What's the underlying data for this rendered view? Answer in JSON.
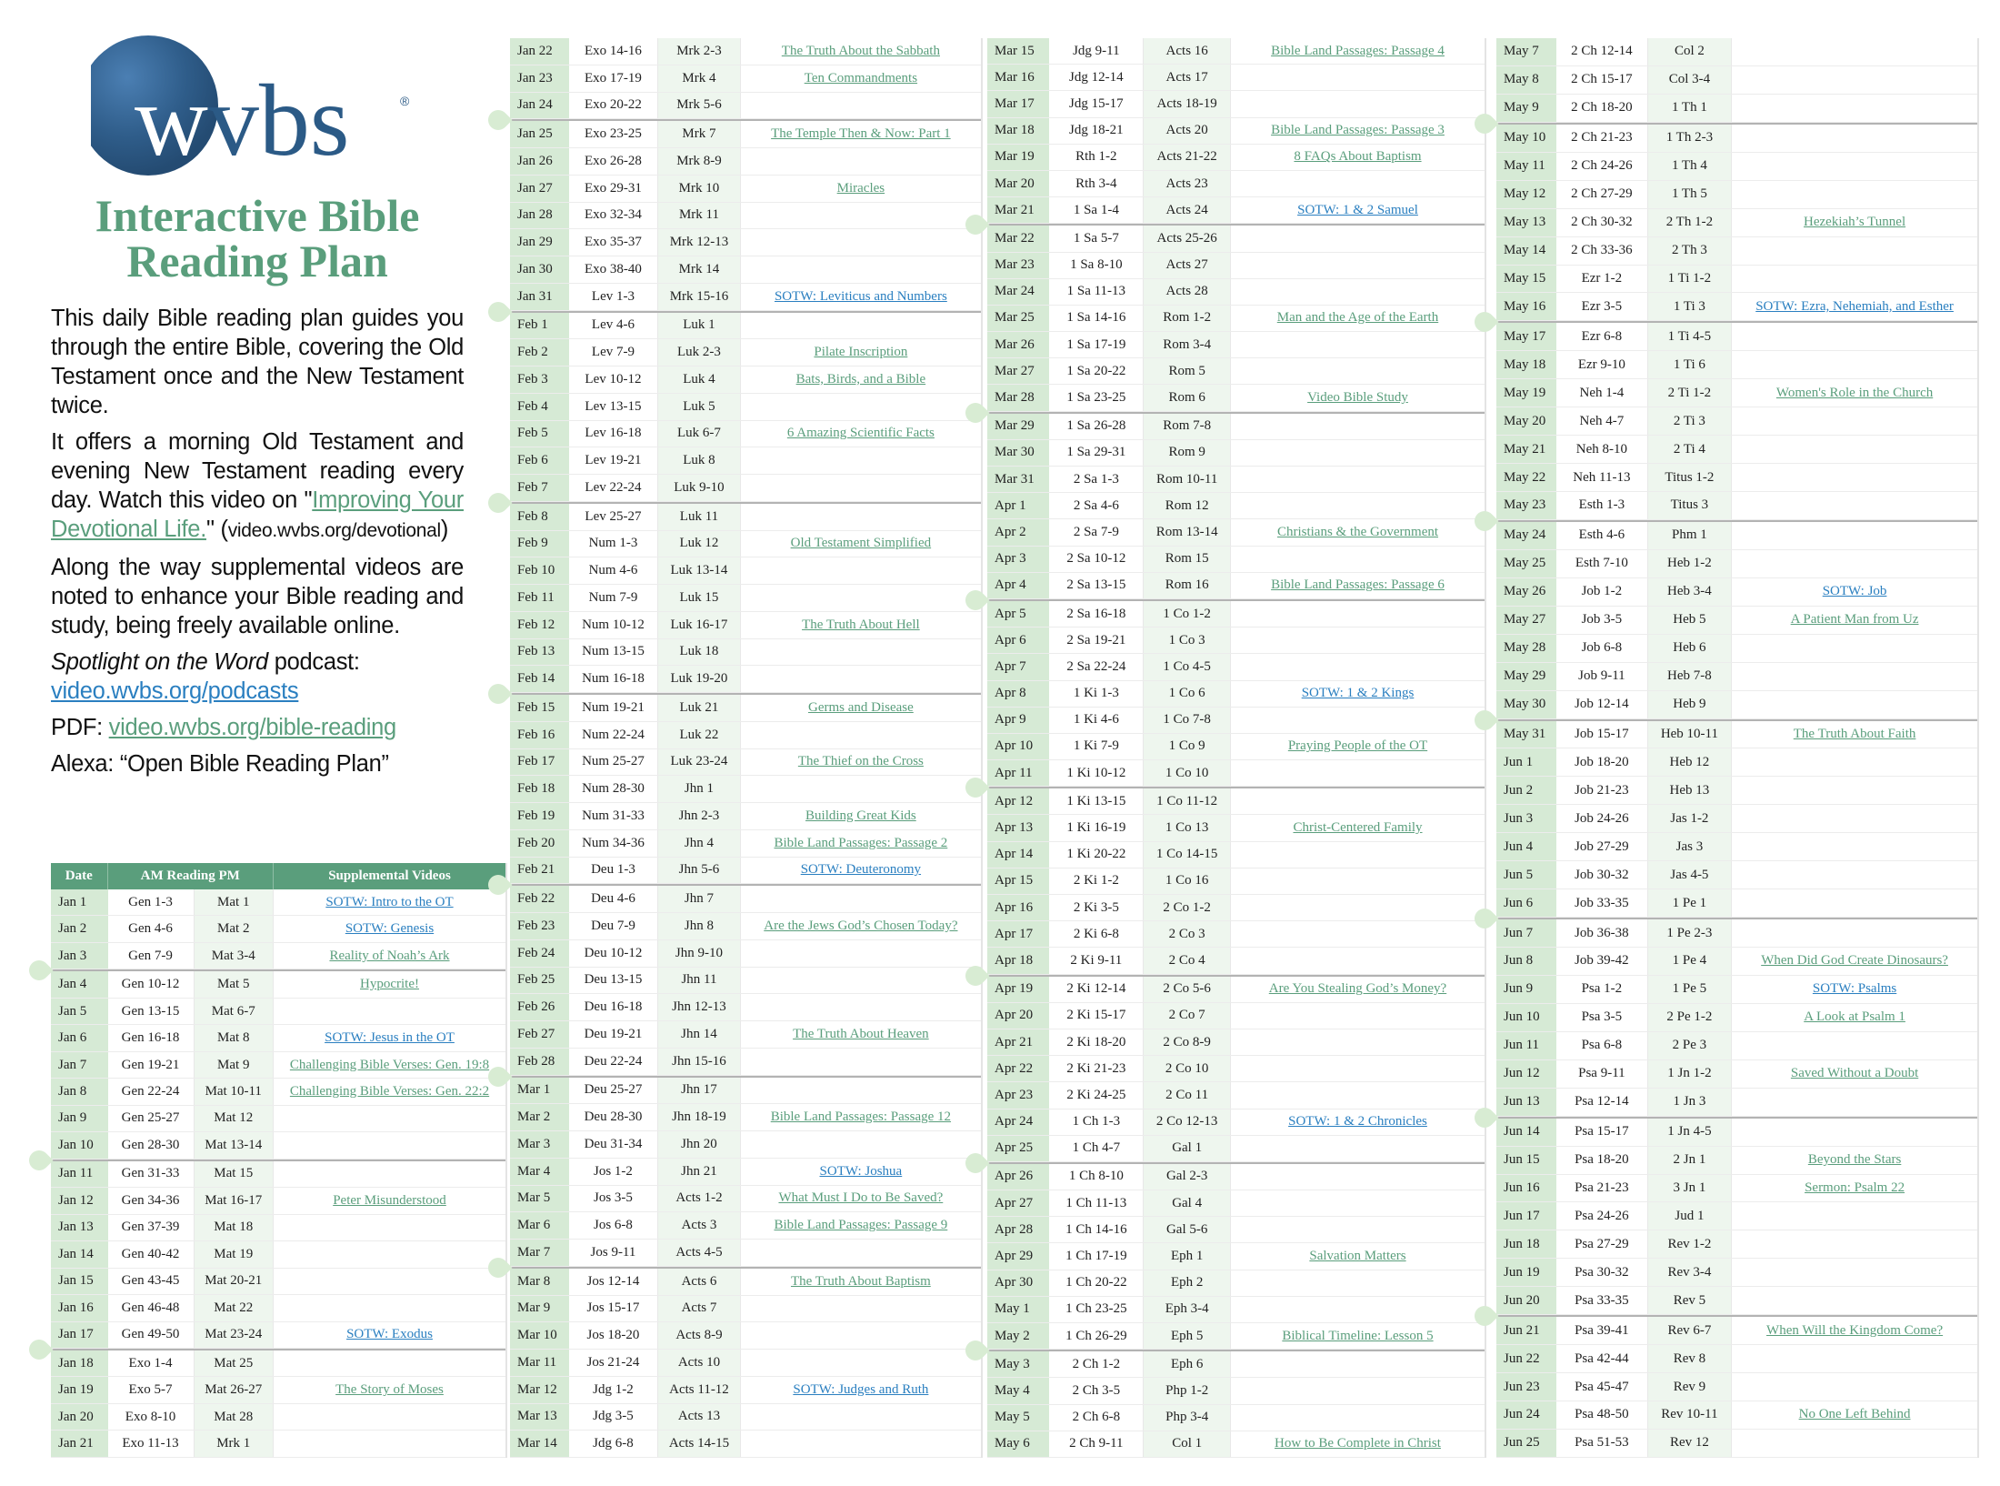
{
  "logo": {
    "text": "wvbs",
    "registered": "®",
    "globe_color": "#2f5d8a"
  },
  "title": {
    "line1": "Interactive Bible",
    "line2": "Reading Plan"
  },
  "intro": {
    "p1": "This daily Bible reading plan guides you through the entire Bible, covering the Old Testament once and the New Testament twice.",
    "p2_before": "It offers a morning Old Testament and evening New Testament reading every day. Watch this video on \"",
    "p2_link": "Improving Your Devotional Life.",
    "p2_mid": "\" (",
    "p2_url": "video.wvbs.org/devotional",
    "p2_after": ")",
    "p3": "Along the way supplemental videos are noted to enhance your Bible reading and study, being freely available online.",
    "podcast_name": "Spotlight on the Word",
    "podcast_suffix": " podcast:",
    "podcast_url": "video.wvbs.org/podcasts",
    "pdf_label": "PDF: ",
    "pdf_url": "video.wvbs.org/bible-reading",
    "alexa": "Alexa: “Open Bible Reading Plan”"
  },
  "colors": {
    "accent": "#5a9e7c",
    "link_sotw": "#2a7fc0",
    "date_bg": "#d6ead5",
    "pm_bg": "#eef6ee"
  },
  "table_header": {
    "date": "Date",
    "reading": "AM  Reading  PM",
    "videos": "Supplemental Videos"
  },
  "columns": [
    {
      "rows": [
        [
          "Jan 1",
          "Gen 1-3",
          "Mat 1",
          "SOTW: Intro to the OT"
        ],
        [
          "Jan 2",
          "Gen 4-6",
          "Mat 2",
          "SOTW: Genesis"
        ],
        [
          "Jan 3",
          "Gen 7-9",
          "Mat 3-4",
          "Reality of Noah’s Ark"
        ],
        [
          "Jan 4",
          "Gen 10-12",
          "Mat 5",
          "Hypocrite!"
        ],
        [
          "Jan 5",
          "Gen 13-15",
          "Mat 6-7",
          ""
        ],
        [
          "Jan 6",
          "Gen 16-18",
          "Mat 8",
          "SOTW: Jesus in the OT"
        ],
        [
          "Jan 7",
          "Gen 19-21",
          "Mat 9",
          "Challenging Bible Verses: Gen. 19:8"
        ],
        [
          "Jan 8",
          "Gen 22-24",
          "Mat 10-11",
          "Challenging Bible Verses: Gen. 22:2"
        ],
        [
          "Jan 9",
          "Gen 25-27",
          "Mat 12",
          ""
        ],
        [
          "Jan 10",
          "Gen 28-30",
          "Mat 13-14",
          ""
        ],
        [
          "Jan 11",
          "Gen 31-33",
          "Mat 15",
          ""
        ],
        [
          "Jan 12",
          "Gen 34-36",
          "Mat 16-17",
          "Peter Misunderstood"
        ],
        [
          "Jan 13",
          "Gen 37-39",
          "Mat 18",
          ""
        ],
        [
          "Jan 14",
          "Gen 40-42",
          "Mat 19",
          ""
        ],
        [
          "Jan 15",
          "Gen 43-45",
          "Mat 20-21",
          ""
        ],
        [
          "Jan 16",
          "Gen 46-48",
          "Mat 22",
          ""
        ],
        [
          "Jan 17",
          "Gen 49-50",
          "Mat 23-24",
          "SOTW: Exodus"
        ],
        [
          "Jan 18",
          "Exo 1-4",
          "Mat 25",
          ""
        ],
        [
          "Jan 19",
          "Exo 5-7",
          "Mat 26-27",
          "The Story of Moses"
        ],
        [
          "Jan 20",
          "Exo 8-10",
          "Mat 28",
          ""
        ],
        [
          "Jan 21",
          "Exo 11-13",
          "Mrk 1",
          ""
        ]
      ]
    },
    {
      "rows": [
        [
          "Jan 22",
          "Exo 14-16",
          "Mrk 2-3",
          "The Truth About the Sabbath"
        ],
        [
          "Jan 23",
          "Exo 17-19",
          "Mrk 4",
          "Ten Commandments"
        ],
        [
          "Jan 24",
          "Exo 20-22",
          "Mrk 5-6",
          ""
        ],
        [
          "Jan 25",
          "Exo 23-25",
          "Mrk 7",
          "The Temple Then & Now: Part 1"
        ],
        [
          "Jan 26",
          "Exo 26-28",
          "Mrk 8-9",
          ""
        ],
        [
          "Jan 27",
          "Exo 29-31",
          "Mrk 10",
          "Miracles"
        ],
        [
          "Jan 28",
          "Exo 32-34",
          "Mrk 11",
          ""
        ],
        [
          "Jan 29",
          "Exo 35-37",
          "Mrk 12-13",
          ""
        ],
        [
          "Jan 30",
          "Exo 38-40",
          "Mrk 14",
          ""
        ],
        [
          "Jan 31",
          "Lev 1-3",
          "Mrk 15-16",
          "SOTW: Leviticus and Numbers"
        ],
        [
          "Feb 1",
          "Lev 4-6",
          "Luk 1",
          ""
        ],
        [
          "Feb 2",
          "Lev 7-9",
          "Luk 2-3",
          "Pilate Inscription"
        ],
        [
          "Feb 3",
          "Lev 10-12",
          "Luk 4",
          "Bats, Birds, and a Bible"
        ],
        [
          "Feb 4",
          "Lev 13-15",
          "Luk 5",
          ""
        ],
        [
          "Feb 5",
          "Lev 16-18",
          "Luk 6-7",
          "6 Amazing Scientific Facts"
        ],
        [
          "Feb 6",
          "Lev 19-21",
          "Luk 8",
          ""
        ],
        [
          "Feb 7",
          "Lev 22-24",
          "Luk 9-10",
          ""
        ],
        [
          "Feb 8",
          "Lev 25-27",
          "Luk 11",
          ""
        ],
        [
          "Feb 9",
          "Num 1-3",
          "Luk 12",
          "Old Testament Simplified"
        ],
        [
          "Feb 10",
          "Num 4-6",
          "Luk 13-14",
          ""
        ],
        [
          "Feb 11",
          "Num 7-9",
          "Luk 15",
          ""
        ],
        [
          "Feb 12",
          "Num 10-12",
          "Luk 16-17",
          "The Truth About Hell"
        ],
        [
          "Feb 13",
          "Num 13-15",
          "Luk 18",
          ""
        ],
        [
          "Feb 14",
          "Num 16-18",
          "Luk 19-20",
          ""
        ],
        [
          "Feb 15",
          "Num 19-21",
          "Luk 21",
          "Germs and Disease"
        ],
        [
          "Feb 16",
          "Num 22-24",
          "Luk 22",
          ""
        ],
        [
          "Feb 17",
          "Num 25-27",
          "Luk 23-24",
          "The Thief on the Cross"
        ],
        [
          "Feb 18",
          "Num 28-30",
          "Jhn 1",
          ""
        ],
        [
          "Feb 19",
          "Num 31-33",
          "Jhn 2-3",
          "Building Great Kids"
        ],
        [
          "Feb 20",
          "Num 34-36",
          "Jhn 4",
          "Bible Land Passages: Passage 2"
        ],
        [
          "Feb 21",
          "Deu 1-3",
          "Jhn 5-6",
          "SOTW: Deuteronomy"
        ],
        [
          "Feb 22",
          "Deu 4-6",
          "Jhn 7",
          ""
        ],
        [
          "Feb 23",
          "Deu 7-9",
          "Jhn 8",
          "Are the Jews God’s Chosen Today?"
        ],
        [
          "Feb 24",
          "Deu 10-12",
          "Jhn 9-10",
          ""
        ],
        [
          "Feb 25",
          "Deu 13-15",
          "Jhn 11",
          ""
        ],
        [
          "Feb 26",
          "Deu 16-18",
          "Jhn 12-13",
          ""
        ],
        [
          "Feb 27",
          "Deu 19-21",
          "Jhn 14",
          "The Truth About Heaven"
        ],
        [
          "Feb 28",
          "Deu 22-24",
          "Jhn 15-16",
          ""
        ],
        [
          "Mar 1",
          "Deu 25-27",
          "Jhn 17",
          ""
        ],
        [
          "Mar 2",
          "Deu 28-30",
          "Jhn 18-19",
          "Bible Land Passages: Passage 12"
        ],
        [
          "Mar 3",
          "Deu 31-34",
          "Jhn 20",
          ""
        ],
        [
          "Mar 4",
          "Jos 1-2",
          "Jhn 21",
          "SOTW: Joshua"
        ],
        [
          "Mar 5",
          "Jos 3-5",
          "Acts 1-2",
          "What Must I Do to Be Saved?"
        ],
        [
          "Mar 6",
          "Jos 6-8",
          "Acts 3",
          "Bible Land Passages: Passage 9"
        ],
        [
          "Mar 7",
          "Jos 9-11",
          "Acts 4-5",
          ""
        ],
        [
          "Mar 8",
          "Jos 12-14",
          "Acts 6",
          "The Truth About Baptism"
        ],
        [
          "Mar 9",
          "Jos 15-17",
          "Acts 7",
          ""
        ],
        [
          "Mar 10",
          "Jos 18-20",
          "Acts 8-9",
          ""
        ],
        [
          "Mar 11",
          "Jos 21-24",
          "Acts 10",
          ""
        ],
        [
          "Mar 12",
          "Jdg 1-2",
          "Acts 11-12",
          "SOTW: Judges and Ruth"
        ],
        [
          "Mar 13",
          "Jdg 3-5",
          "Acts 13",
          ""
        ],
        [
          "Mar 14",
          "Jdg 6-8",
          "Acts 14-15",
          ""
        ]
      ]
    },
    {
      "rows": [
        [
          "Mar 15",
          "Jdg 9-11",
          "Acts 16",
          "Bible Land Passages: Passage 4"
        ],
        [
          "Mar 16",
          "Jdg 12-14",
          "Acts 17",
          ""
        ],
        [
          "Mar 17",
          "Jdg 15-17",
          "Acts 18-19",
          ""
        ],
        [
          "Mar 18",
          "Jdg 18-21",
          "Acts 20",
          "Bible Land Passages: Passage 3"
        ],
        [
          "Mar 19",
          "Rth 1-2",
          "Acts 21-22",
          "8 FAQs About Baptism"
        ],
        [
          "Mar 20",
          "Rth 3-4",
          "Acts 23",
          ""
        ],
        [
          "Mar 21",
          "1 Sa 1-4",
          "Acts 24",
          "SOTW: 1 & 2 Samuel"
        ],
        [
          "Mar 22",
          "1 Sa 5-7",
          "Acts 25-26",
          ""
        ],
        [
          "Mar 23",
          "1 Sa 8-10",
          "Acts 27",
          ""
        ],
        [
          "Mar 24",
          "1 Sa 11-13",
          "Acts 28",
          ""
        ],
        [
          "Mar 25",
          "1 Sa 14-16",
          "Rom 1-2",
          "Man and the Age of the Earth"
        ],
        [
          "Mar 26",
          "1 Sa 17-19",
          "Rom 3-4",
          ""
        ],
        [
          "Mar 27",
          "1 Sa 20-22",
          "Rom 5",
          ""
        ],
        [
          "Mar 28",
          "1 Sa 23-25",
          "Rom 6",
          "Video Bible Study"
        ],
        [
          "Mar 29",
          "1 Sa 26-28",
          "Rom 7-8",
          ""
        ],
        [
          "Mar 30",
          "1 Sa 29-31",
          "Rom 9",
          ""
        ],
        [
          "Mar 31",
          "2 Sa 1-3",
          "Rom 10-11",
          ""
        ],
        [
          "Apr 1",
          "2 Sa 4-6",
          "Rom 12",
          ""
        ],
        [
          "Apr 2",
          "2 Sa 7-9",
          "Rom 13-14",
          "Christians & the Government"
        ],
        [
          "Apr 3",
          "2 Sa 10-12",
          "Rom 15",
          ""
        ],
        [
          "Apr 4",
          "2 Sa 13-15",
          "Rom 16",
          "Bible Land Passages: Passage 6"
        ],
        [
          "Apr 5",
          "2 Sa 16-18",
          "1 Co 1-2",
          ""
        ],
        [
          "Apr 6",
          "2 Sa 19-21",
          "1 Co 3",
          ""
        ],
        [
          "Apr 7",
          "2 Sa 22-24",
          "1 Co 4-5",
          ""
        ],
        [
          "Apr 8",
          "1 Ki 1-3",
          "1 Co 6",
          "SOTW: 1 & 2 Kings"
        ],
        [
          "Apr 9",
          "1 Ki 4-6",
          "1 Co 7-8",
          ""
        ],
        [
          "Apr 10",
          "1 Ki 7-9",
          "1 Co 9",
          "Praying People of the OT"
        ],
        [
          "Apr 11",
          "1 Ki 10-12",
          "1 Co 10",
          ""
        ],
        [
          "Apr 12",
          "1 Ki 13-15",
          "1 Co 11-12",
          ""
        ],
        [
          "Apr 13",
          "1 Ki 16-19",
          "1 Co 13",
          "Christ-Centered Family"
        ],
        [
          "Apr 14",
          "1 Ki 20-22",
          "1 Co 14-15",
          ""
        ],
        [
          "Apr 15",
          "2 Ki 1-2",
          "1 Co 16",
          ""
        ],
        [
          "Apr 16",
          "2 Ki 3-5",
          "2 Co 1-2",
          ""
        ],
        [
          "Apr 17",
          "2 Ki 6-8",
          "2 Co 3",
          ""
        ],
        [
          "Apr 18",
          "2 Ki 9-11",
          "2 Co 4",
          ""
        ],
        [
          "Apr 19",
          "2 Ki 12-14",
          "2 Co 5-6",
          "Are You Stealing God’s Money?"
        ],
        [
          "Apr 20",
          "2 Ki 15-17",
          "2 Co 7",
          ""
        ],
        [
          "Apr 21",
          "2 Ki 18-20",
          "2 Co 8-9",
          ""
        ],
        [
          "Apr 22",
          "2 Ki 21-23",
          "2 Co 10",
          ""
        ],
        [
          "Apr 23",
          "2 Ki 24-25",
          "2 Co 11",
          ""
        ],
        [
          "Apr 24",
          "1 Ch 1-3",
          "2 Co 12-13",
          "SOTW: 1 & 2 Chronicles"
        ],
        [
          "Apr 25",
          "1 Ch 4-7",
          "Gal 1",
          ""
        ],
        [
          "Apr 26",
          "1 Ch 8-10",
          "Gal 2-3",
          ""
        ],
        [
          "Apr 27",
          "1 Ch 11-13",
          "Gal 4",
          ""
        ],
        [
          "Apr 28",
          "1 Ch 14-16",
          "Gal 5-6",
          ""
        ],
        [
          "Apr 29",
          "1 Ch 17-19",
          "Eph 1",
          "Salvation Matters"
        ],
        [
          "Apr 30",
          "1 Ch 20-22",
          "Eph 2",
          ""
        ],
        [
          "May 1",
          "1 Ch 23-25",
          "Eph 3-4",
          ""
        ],
        [
          "May 2",
          "1 Ch 26-29",
          "Eph 5",
          "Biblical Timeline: Lesson 5"
        ],
        [
          "May 3",
          "2 Ch 1-2",
          "Eph 6",
          ""
        ],
        [
          "May 4",
          "2 Ch 3-5",
          "Php 1-2",
          ""
        ],
        [
          "May 5",
          "2 Ch 6-8",
          "Php 3-4",
          ""
        ],
        [
          "May 6",
          "2 Ch 9-11",
          "Col 1",
          "How to Be Complete in Christ"
        ]
      ]
    },
    {
      "rows": [
        [
          "May 7",
          "2 Ch 12-14",
          "Col 2",
          ""
        ],
        [
          "May 8",
          "2 Ch 15-17",
          "Col 3-4",
          ""
        ],
        [
          "May 9",
          "2 Ch 18-20",
          "1 Th 1",
          ""
        ],
        [
          "May 10",
          "2 Ch 21-23",
          "1 Th 2-3",
          ""
        ],
        [
          "May 11",
          "2 Ch 24-26",
          "1 Th 4",
          ""
        ],
        [
          "May 12",
          "2 Ch 27-29",
          "1 Th 5",
          ""
        ],
        [
          "May 13",
          "2 Ch 30-32",
          "2 Th 1-2",
          "Hezekiah’s Tunnel"
        ],
        [
          "May 14",
          "2 Ch 33-36",
          "2 Th 3",
          ""
        ],
        [
          "May 15",
          "Ezr 1-2",
          "1 Ti 1-2",
          ""
        ],
        [
          "May 16",
          "Ezr 3-5",
          "1 Ti 3",
          "SOTW: Ezra, Nehemiah, and Esther"
        ],
        [
          "May 17",
          "Ezr 6-8",
          "1 Ti 4-5",
          ""
        ],
        [
          "May 18",
          "Ezr 9-10",
          "1 Ti 6",
          ""
        ],
        [
          "May 19",
          "Neh 1-4",
          "2 Ti 1-2",
          "Women's Role in the Church"
        ],
        [
          "May 20",
          "Neh 4-7",
          "2 Ti 3",
          ""
        ],
        [
          "May 21",
          "Neh 8-10",
          "2 Ti 4",
          ""
        ],
        [
          "May 22",
          "Neh 11-13",
          "Titus 1-2",
          ""
        ],
        [
          "May 23",
          "Esth 1-3",
          "Titus 3",
          ""
        ],
        [
          "May 24",
          "Esth 4-6",
          "Phm 1",
          ""
        ],
        [
          "May 25",
          "Esth 7-10",
          "Heb 1-2",
          ""
        ],
        [
          "May 26",
          "Job 1-2",
          "Heb 3-4",
          "SOTW: Job"
        ],
        [
          "May 27",
          "Job 3-5",
          "Heb 5",
          "A Patient Man from Uz"
        ],
        [
          "May 28",
          "Job 6-8",
          "Heb 6",
          ""
        ],
        [
          "May 29",
          "Job 9-11",
          "Heb 7-8",
          ""
        ],
        [
          "May 30",
          "Job 12-14",
          "Heb 9",
          ""
        ],
        [
          "May 31",
          "Job 15-17",
          "Heb 10-11",
          "The Truth About Faith"
        ],
        [
          "Jun 1",
          "Job 18-20",
          "Heb 12",
          ""
        ],
        [
          "Jun 2",
          "Job 21-23",
          "Heb 13",
          ""
        ],
        [
          "Jun 3",
          "Job 24-26",
          "Jas 1-2",
          ""
        ],
        [
          "Jun 4",
          "Job 27-29",
          "Jas 3",
          ""
        ],
        [
          "Jun 5",
          "Job 30-32",
          "Jas 4-5",
          ""
        ],
        [
          "Jun 6",
          "Job 33-35",
          "1 Pe 1",
          ""
        ],
        [
          "Jun 7",
          "Job 36-38",
          "1 Pe 2-3",
          ""
        ],
        [
          "Jun 8",
          "Job 39-42",
          "1 Pe 4",
          "When Did God Create Dinosaurs?"
        ],
        [
          "Jun 9",
          "Psa 1-2",
          "1 Pe 5",
          "SOTW: Psalms"
        ],
        [
          "Jun 10",
          "Psa 3-5",
          "2 Pe 1-2",
          "A Look at Psalm 1"
        ],
        [
          "Jun 11",
          "Psa 6-8",
          "2 Pe 3",
          ""
        ],
        [
          "Jun 12",
          "Psa 9-11",
          "1 Jn 1-2",
          "Saved Without a Doubt"
        ],
        [
          "Jun 13",
          "Psa 12-14",
          "1 Jn 3",
          ""
        ],
        [
          "Jun 14",
          "Psa 15-17",
          "1 Jn 4-5",
          ""
        ],
        [
          "Jun 15",
          "Psa 18-20",
          "2 Jn 1",
          "Beyond the Stars"
        ],
        [
          "Jun 16",
          "Psa 21-23",
          "3 Jn 1",
          "Sermon: Psalm 22"
        ],
        [
          "Jun 17",
          "Psa 24-26",
          "Jud 1",
          ""
        ],
        [
          "Jun 18",
          "Psa 27-29",
          "Rev 1-2",
          ""
        ],
        [
          "Jun 19",
          "Psa 30-32",
          "Rev 3-4",
          ""
        ],
        [
          "Jun 20",
          "Psa 33-35",
          "Rev 5",
          ""
        ],
        [
          "Jun 21",
          "Psa 39-41",
          "Rev 6-7",
          "When Will the Kingdom Come?"
        ],
        [
          "Jun 22",
          "Psa 42-44",
          "Rev 8",
          ""
        ],
        [
          "Jun 23",
          "Psa 45-47",
          "Rev 9",
          ""
        ],
        [
          "Jun 24",
          "Psa 48-50",
          "Rev 10-11",
          "No One Left Behind"
        ],
        [
          "Jun 25",
          "Psa 51-53",
          "Rev 12",
          ""
        ]
      ]
    }
  ]
}
